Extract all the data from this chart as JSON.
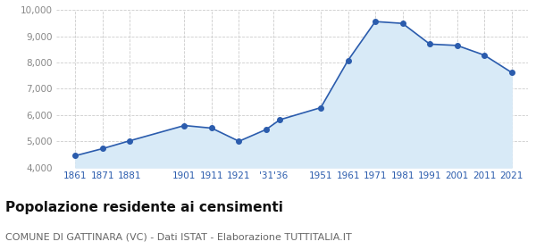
{
  "years": [
    1861,
    1871,
    1881,
    1901,
    1911,
    1921,
    1931,
    1936,
    1951,
    1961,
    1971,
    1981,
    1991,
    2001,
    2011,
    2021
  ],
  "population": [
    4450,
    4720,
    5020,
    5600,
    5500,
    5000,
    5450,
    5820,
    6280,
    8080,
    9560,
    9490,
    8700,
    8650,
    8280,
    7620
  ],
  "x_tick_positions": [
    1861,
    1871,
    1881,
    1901,
    1911,
    1921,
    1933.5,
    1951,
    1961,
    1971,
    1981,
    1991,
    2001,
    2011,
    2021
  ],
  "x_tick_labels": [
    "1861",
    "1871",
    "1881",
    "1901",
    "1911",
    "1921",
    "'31'36",
    "1951",
    "1961",
    "1971",
    "1981",
    "1991",
    "2001",
    "2011",
    "2021"
  ],
  "ylim": [
    4000,
    10000
  ],
  "yticks": [
    4000,
    5000,
    6000,
    7000,
    8000,
    9000,
    10000
  ],
  "ytick_labels": [
    "4,000",
    "5,000",
    "6,000",
    "7,000",
    "8,000",
    "9,000",
    "10,000"
  ],
  "line_color": "#2b5cad",
  "fill_color": "#d8eaf7",
  "marker_size": 4,
  "bg_color": "#ffffff",
  "grid_color": "#cccccc",
  "title": "Popolazione residente ai censimenti",
  "subtitle": "COMUNE DI GATTINARA (VC) - Dati ISTAT - Elaborazione TUTTITALIA.IT",
  "title_fontsize": 11,
  "subtitle_fontsize": 8,
  "tick_color": "#2b5cad",
  "ytick_color": "#888888",
  "tick_fontsize": 7.5,
  "xlim_left": 1854,
  "xlim_right": 2027
}
